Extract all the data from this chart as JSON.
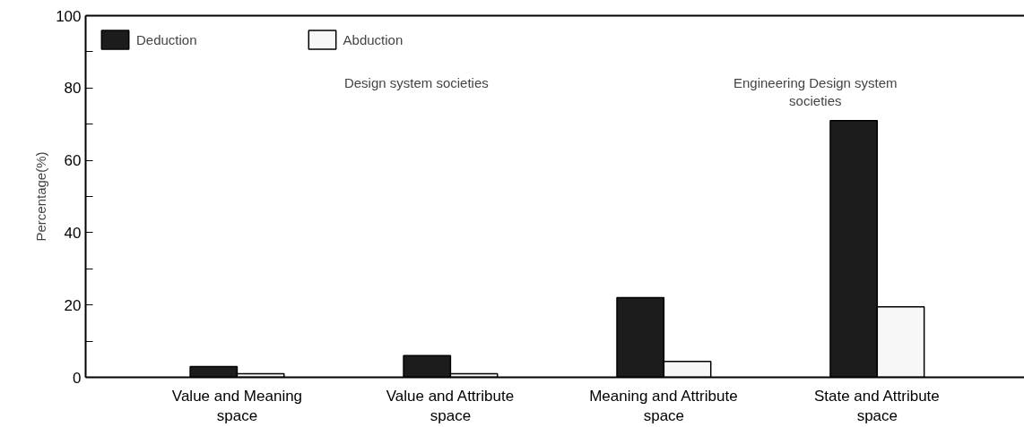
{
  "chart_data": {
    "type": "bar",
    "ylabel": "Percentage(%)",
    "categories": [
      "Value and Meaning space",
      "Value and Attribute space",
      "Meaning and Attribute space",
      "State and Attribute space"
    ],
    "series": [
      {
        "name": "Deduction",
        "color": "#1c1c1c",
        "values": [
          3,
          6,
          22,
          71
        ]
      },
      {
        "name": "Abduction",
        "color": "#f7f7f7",
        "values": [
          1,
          1,
          4.4,
          19.5
        ]
      }
    ],
    "ylim": [
      0,
      100
    ],
    "yticks": [
      0,
      {
        "value": 10,
        "label": null
      },
      20,
      {
        "value": 30,
        "label": null
      },
      40,
      {
        "value": 50,
        "label": null
      },
      60,
      {
        "value": 70,
        "label": null
      },
      80,
      {
        "value": 90,
        "label": null
      },
      100
    ],
    "annotations": [
      "Design system societies",
      "Engineering Design system societies"
    ],
    "legend": "top left",
    "grid": false
  }
}
